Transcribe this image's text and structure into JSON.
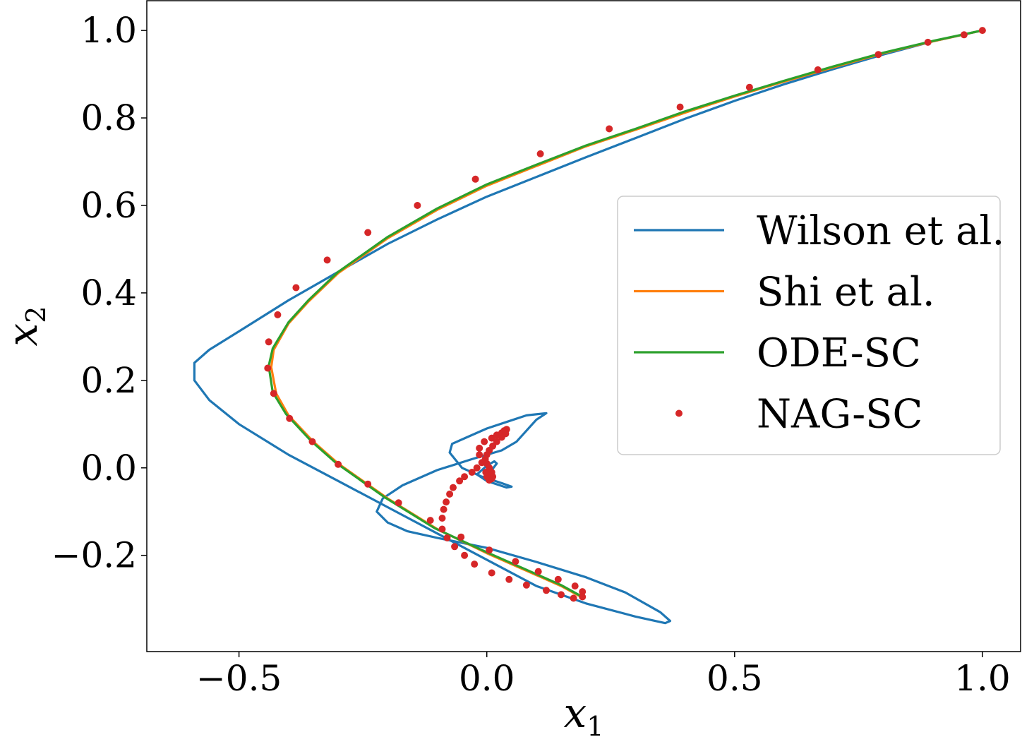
{
  "chart_data": {
    "type": "line",
    "xlabel": "x",
    "xlabel_subscript": "1",
    "ylabel": "x",
    "ylabel_subscript": "2",
    "xlim": [
      -0.686,
      1.077
    ],
    "ylim": [
      -0.42,
      1.068
    ],
    "xticks": [
      {
        "value": -0.5,
        "label": "−0.5"
      },
      {
        "value": 0.0,
        "label": "0.0"
      },
      {
        "value": 0.5,
        "label": "0.5"
      },
      {
        "value": 1.0,
        "label": "1.0"
      }
    ],
    "yticks": [
      {
        "value": -0.2,
        "label": "−0.2"
      },
      {
        "value": 0.0,
        "label": "0.0"
      },
      {
        "value": 0.2,
        "label": "0.2"
      },
      {
        "value": 0.4,
        "label": "0.4"
      },
      {
        "value": 0.6,
        "label": "0.6"
      },
      {
        "value": 0.8,
        "label": "0.8"
      },
      {
        "value": 1.0,
        "label": "1.0"
      }
    ],
    "grid": false,
    "legend_position": "right",
    "series": [
      {
        "name": "Wilson et al.",
        "kind": "line",
        "color": "#1f77b4",
        "points": [
          [
            1.0,
            1.0
          ],
          [
            0.9,
            0.975
          ],
          [
            0.8,
            0.945
          ],
          [
            0.7,
            0.912
          ],
          [
            0.6,
            0.877
          ],
          [
            0.5,
            0.839
          ],
          [
            0.4,
            0.798
          ],
          [
            0.3,
            0.754
          ],
          [
            0.2,
            0.71
          ],
          [
            0.1,
            0.665
          ],
          [
            0.0,
            0.62
          ],
          [
            -0.1,
            0.568
          ],
          [
            -0.2,
            0.512
          ],
          [
            -0.3,
            0.448
          ],
          [
            -0.4,
            0.383
          ],
          [
            -0.5,
            0.312
          ],
          [
            -0.56,
            0.27
          ],
          [
            -0.59,
            0.24
          ],
          [
            -0.59,
            0.2
          ],
          [
            -0.56,
            0.155
          ],
          [
            -0.5,
            0.1
          ],
          [
            -0.4,
            0.03
          ],
          [
            -0.3,
            -0.03
          ],
          [
            -0.2,
            -0.09
          ],
          [
            -0.1,
            -0.15
          ],
          [
            0.0,
            -0.21
          ],
          [
            0.1,
            -0.27
          ],
          [
            0.2,
            -0.31
          ],
          [
            0.3,
            -0.34
          ],
          [
            0.36,
            -0.355
          ],
          [
            0.37,
            -0.35
          ],
          [
            0.35,
            -0.33
          ],
          [
            0.28,
            -0.285
          ],
          [
            0.2,
            -0.25
          ],
          [
            0.1,
            -0.215
          ],
          [
            0.0,
            -0.183
          ],
          [
            -0.1,
            -0.16
          ],
          [
            -0.16,
            -0.145
          ],
          [
            -0.2,
            -0.125
          ],
          [
            -0.222,
            -0.1
          ],
          [
            -0.21,
            -0.07
          ],
          [
            -0.17,
            -0.04
          ],
          [
            -0.1,
            -0.005
          ],
          [
            -0.03,
            0.02
          ],
          [
            0.03,
            0.04
          ],
          [
            0.06,
            0.06
          ],
          [
            0.08,
            0.085
          ],
          [
            0.1,
            0.11
          ],
          [
            0.12,
            0.125
          ],
          [
            0.08,
            0.12
          ],
          [
            0.04,
            0.105
          ],
          [
            0.0,
            0.09
          ],
          [
            -0.04,
            0.07
          ],
          [
            -0.07,
            0.055
          ],
          [
            -0.075,
            0.035
          ],
          [
            -0.05,
            0.0
          ],
          [
            -0.01,
            -0.02
          ],
          [
            0.03,
            -0.035
          ],
          [
            0.05,
            -0.043
          ],
          [
            0.04,
            -0.045
          ],
          [
            0.0,
            -0.03
          ],
          [
            -0.02,
            -0.015
          ],
          [
            0.0,
            0.005
          ],
          [
            0.015,
            0.015
          ],
          [
            0.02,
            0.01
          ],
          [
            0.01,
            -0.005
          ],
          [
            0.0,
            -0.01
          ]
        ]
      },
      {
        "name": "Shi et al.",
        "kind": "line",
        "color": "#ff7f0e",
        "points": [
          [
            1.0,
            1.0
          ],
          [
            0.9,
            0.975
          ],
          [
            0.8,
            0.948
          ],
          [
            0.7,
            0.916
          ],
          [
            0.6,
            0.883
          ],
          [
            0.5,
            0.849
          ],
          [
            0.4,
            0.812
          ],
          [
            0.3,
            0.773
          ],
          [
            0.2,
            0.735
          ],
          [
            0.1,
            0.69
          ],
          [
            0.0,
            0.645
          ],
          [
            -0.1,
            0.59
          ],
          [
            -0.2,
            0.525
          ],
          [
            -0.3,
            0.445
          ],
          [
            -0.36,
            0.38
          ],
          [
            -0.4,
            0.33
          ],
          [
            -0.43,
            0.27
          ],
          [
            -0.435,
            0.23
          ],
          [
            -0.425,
            0.17
          ],
          [
            -0.4,
            0.12
          ],
          [
            -0.35,
            0.06
          ],
          [
            -0.3,
            0.01
          ],
          [
            -0.2,
            -0.07
          ],
          [
            -0.1,
            -0.14
          ],
          [
            0.0,
            -0.195
          ],
          [
            0.05,
            -0.22
          ],
          [
            0.1,
            -0.245
          ],
          [
            0.15,
            -0.27
          ],
          [
            0.19,
            -0.295
          ]
        ]
      },
      {
        "name": "ODE-SC",
        "kind": "line",
        "color": "#2ca02c",
        "points": [
          [
            1.0,
            1.0
          ],
          [
            0.9,
            0.976
          ],
          [
            0.8,
            0.949
          ],
          [
            0.7,
            0.918
          ],
          [
            0.6,
            0.885
          ],
          [
            0.5,
            0.851
          ],
          [
            0.4,
            0.815
          ],
          [
            0.3,
            0.775
          ],
          [
            0.2,
            0.737
          ],
          [
            0.1,
            0.693
          ],
          [
            0.0,
            0.648
          ],
          [
            -0.1,
            0.593
          ],
          [
            -0.2,
            0.528
          ],
          [
            -0.3,
            0.448
          ],
          [
            -0.36,
            0.383
          ],
          [
            -0.4,
            0.333
          ],
          [
            -0.432,
            0.273
          ],
          [
            -0.44,
            0.233
          ],
          [
            -0.432,
            0.173
          ],
          [
            -0.405,
            0.123
          ],
          [
            -0.355,
            0.062
          ],
          [
            -0.305,
            0.012
          ],
          [
            -0.205,
            -0.068
          ],
          [
            -0.105,
            -0.138
          ],
          [
            0.0,
            -0.193
          ],
          [
            0.05,
            -0.218
          ],
          [
            0.1,
            -0.243
          ],
          [
            0.15,
            -0.268
          ],
          [
            0.19,
            -0.293
          ]
        ]
      },
      {
        "name": "NAG-SC",
        "kind": "scatter",
        "color": "#d62728",
        "points": [
          [
            1.0,
            1.0
          ],
          [
            0.963,
            0.99
          ],
          [
            0.89,
            0.973
          ],
          [
            0.79,
            0.945
          ],
          [
            0.668,
            0.91
          ],
          [
            0.53,
            0.87
          ],
          [
            0.39,
            0.825
          ],
          [
            0.247,
            0.775
          ],
          [
            0.108,
            0.718
          ],
          [
            -0.023,
            0.66
          ],
          [
            -0.14,
            0.6
          ],
          [
            -0.24,
            0.538
          ],
          [
            -0.322,
            0.475
          ],
          [
            -0.385,
            0.412
          ],
          [
            -0.422,
            0.35
          ],
          [
            -0.44,
            0.288
          ],
          [
            -0.442,
            0.228
          ],
          [
            -0.43,
            0.17
          ],
          [
            -0.398,
            0.113
          ],
          [
            -0.352,
            0.06
          ],
          [
            -0.3,
            0.008
          ],
          [
            -0.24,
            -0.037
          ],
          [
            -0.178,
            -0.08
          ],
          [
            -0.114,
            -0.12
          ],
          [
            -0.052,
            -0.158
          ],
          [
            0.005,
            -0.188
          ],
          [
            0.058,
            -0.214
          ],
          [
            0.104,
            -0.237
          ],
          [
            0.144,
            -0.255
          ],
          [
            0.178,
            -0.27
          ],
          [
            0.193,
            -0.283
          ],
          [
            0.193,
            -0.295
          ],
          [
            0.175,
            -0.298
          ],
          [
            0.15,
            -0.29
          ],
          [
            0.12,
            -0.28
          ],
          [
            0.08,
            -0.268
          ],
          [
            0.045,
            -0.255
          ],
          [
            0.01,
            -0.24
          ],
          [
            -0.025,
            -0.22
          ],
          [
            -0.045,
            -0.2
          ],
          [
            -0.065,
            -0.18
          ],
          [
            -0.08,
            -0.16
          ],
          [
            -0.09,
            -0.14
          ],
          [
            -0.09,
            -0.115
          ],
          [
            -0.087,
            -0.095
          ],
          [
            -0.082,
            -0.078
          ],
          [
            -0.075,
            -0.06
          ],
          [
            -0.068,
            -0.045
          ],
          [
            -0.055,
            -0.03
          ],
          [
            -0.045,
            -0.02
          ],
          [
            -0.03,
            -0.01
          ],
          [
            -0.02,
            0.0
          ],
          [
            -0.01,
            0.012
          ],
          [
            -0.015,
            0.03
          ],
          [
            -0.015,
            0.045
          ],
          [
            -0.005,
            0.06
          ],
          [
            0.01,
            0.068
          ],
          [
            0.02,
            0.075
          ],
          [
            0.03,
            0.08
          ],
          [
            0.035,
            0.085
          ],
          [
            0.04,
            0.088
          ],
          [
            0.038,
            0.078
          ],
          [
            0.03,
            0.07
          ],
          [
            0.02,
            0.06
          ],
          [
            0.012,
            0.05
          ],
          [
            0.005,
            0.04
          ],
          [
            0.0,
            0.03
          ],
          [
            -0.003,
            0.02
          ],
          [
            0.0,
            0.01
          ],
          [
            0.005,
            0.0
          ],
          [
            0.01,
            -0.01
          ],
          [
            0.012,
            -0.02
          ],
          [
            0.01,
            -0.025
          ],
          [
            0.005,
            -0.028
          ],
          [
            0.0,
            -0.02
          ],
          [
            -0.002,
            -0.01
          ]
        ]
      }
    ]
  }
}
